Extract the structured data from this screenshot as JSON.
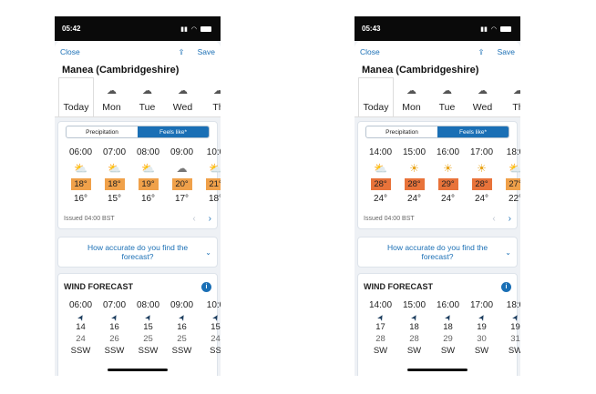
{
  "phones": [
    {
      "time": "05:42",
      "close": "Close",
      "save": "Save",
      "location": "Manea (Cambridgeshire)",
      "days": [
        "Today",
        "Mon",
        "Tue",
        "Wed",
        "Th"
      ],
      "toggle": [
        "Precipitation",
        "Feels like*"
      ],
      "hours": [
        "06:00",
        "07:00",
        "08:00",
        "09:00",
        "10:0"
      ],
      "feels": [
        "18°",
        "18°",
        "19°",
        "20°",
        "21°"
      ],
      "feels_colors": [
        "#f0a14a",
        "#f0a14a",
        "#f0a14a",
        "#f0a14a",
        "#f0a14a"
      ],
      "temps": [
        "16°",
        "15°",
        "16°",
        "17°",
        "18°"
      ],
      "icons": [
        "sun-cloud-icon",
        "sun-cloud-icon",
        "sun-cloud-icon",
        "cloud-icon",
        "sun-cloud-icon"
      ],
      "issued": "Issued 04:00 BST",
      "accuracy": "How accurate do you find the forecast?",
      "wind_title": "WIND FORECAST",
      "wind_hours": [
        "06:00",
        "07:00",
        "08:00",
        "09:00",
        "10:0"
      ],
      "wind_speed": [
        "14",
        "16",
        "15",
        "16",
        "15"
      ],
      "wind_gust": [
        "24",
        "26",
        "25",
        "25",
        "24"
      ],
      "wind_dir": [
        "SSW",
        "SSW",
        "SSW",
        "SSW",
        "SS"
      ]
    },
    {
      "time": "05:43",
      "close": "Close",
      "save": "Save",
      "location": "Manea (Cambridgeshire)",
      "days": [
        "Today",
        "Mon",
        "Tue",
        "Wed",
        "Th"
      ],
      "toggle": [
        "Precipitation",
        "Feels like*"
      ],
      "hours": [
        "14:00",
        "15:00",
        "16:00",
        "17:00",
        "18:0"
      ],
      "feels": [
        "28°",
        "28°",
        "29°",
        "28°",
        "27°"
      ],
      "feels_colors": [
        "#e8733a",
        "#e8733a",
        "#e8733a",
        "#e8733a",
        "#f0a14a"
      ],
      "temps": [
        "24°",
        "24°",
        "24°",
        "24°",
        "22°"
      ],
      "icons": [
        "sun-cloud-icon",
        "sun-icon",
        "sun-icon",
        "sun-icon",
        "sun-cloud-icon"
      ],
      "issued": "Issued 04:00 BST",
      "accuracy": "How accurate do you find the forecast?",
      "wind_title": "WIND FORECAST",
      "wind_hours": [
        "14:00",
        "15:00",
        "16:00",
        "17:00",
        "18:0"
      ],
      "wind_speed": [
        "17",
        "18",
        "18",
        "19",
        "19"
      ],
      "wind_gust": [
        "28",
        "28",
        "29",
        "30",
        "31"
      ],
      "wind_dir": [
        "SW",
        "SW",
        "SW",
        "SW",
        "SW"
      ]
    }
  ]
}
